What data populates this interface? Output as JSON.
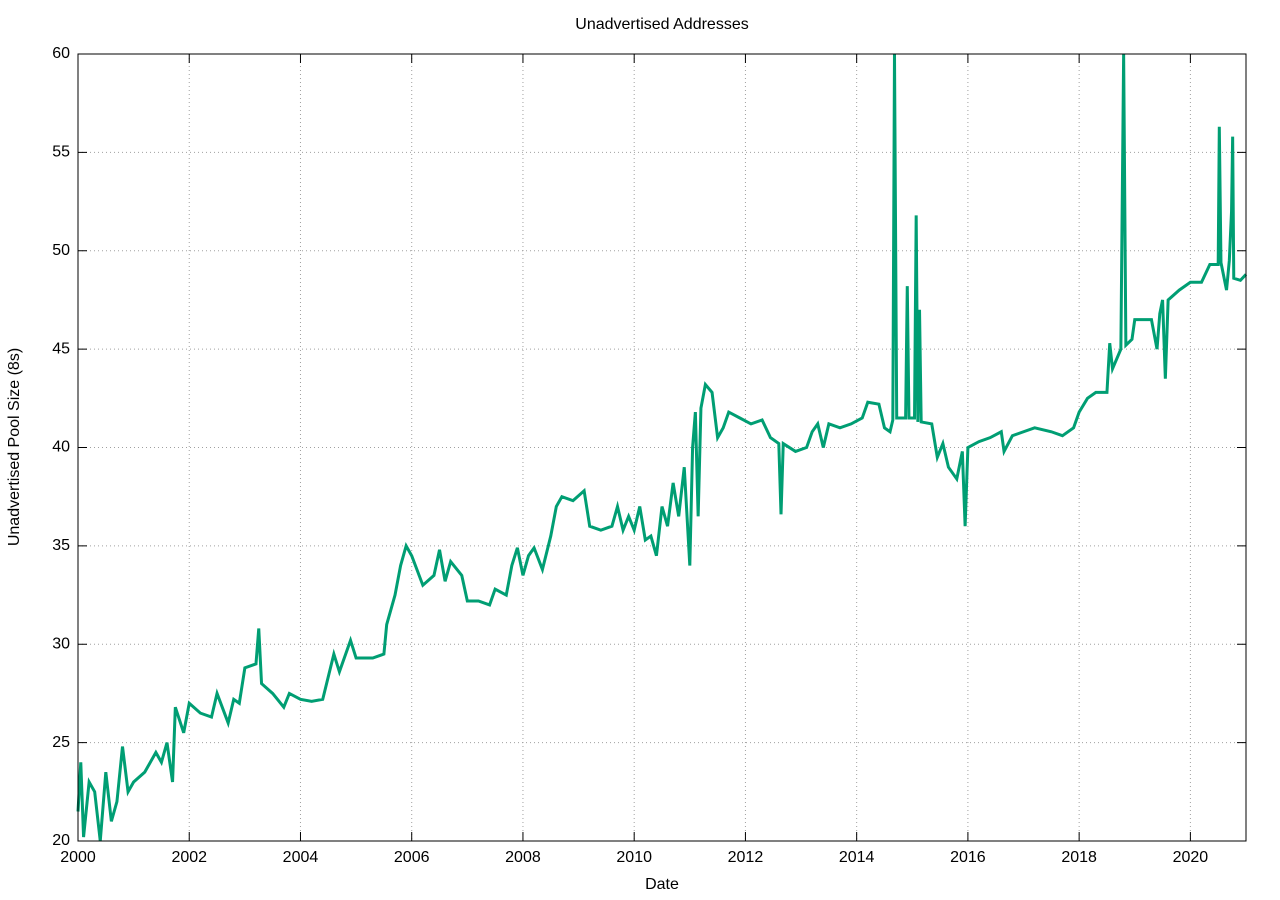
{
  "chart_data": {
    "type": "line",
    "title": "Unadvertised Addresses",
    "x_label": "Date",
    "y_label": "Unadvertised Pool Size (8s)",
    "x": [
      2000.0,
      2000.05,
      2000.1,
      2000.2,
      2000.3,
      2000.4,
      2000.5,
      2000.6,
      2000.7,
      2000.8,
      2000.9,
      2001.0,
      2001.2,
      2001.4,
      2001.5,
      2001.6,
      2001.7,
      2001.75,
      2001.9,
      2002.0,
      2002.2,
      2002.4,
      2002.5,
      2002.7,
      2002.8,
      2002.9,
      2003.0,
      2003.2,
      2003.25,
      2003.3,
      2003.5,
      2003.7,
      2003.8,
      2004.0,
      2004.2,
      2004.4,
      2004.6,
      2004.7,
      2004.9,
      2005.0,
      2005.3,
      2005.5,
      2005.55,
      2005.7,
      2005.8,
      2005.9,
      2006.0,
      2006.2,
      2006.4,
      2006.5,
      2006.6,
      2006.7,
      2006.9,
      2007.0,
      2007.2,
      2007.4,
      2007.5,
      2007.7,
      2007.8,
      2007.9,
      2008.0,
      2008.1,
      2008.2,
      2008.35,
      2008.5,
      2008.6,
      2008.7,
      2008.9,
      2009.1,
      2009.2,
      2009.4,
      2009.6,
      2009.7,
      2009.8,
      2009.9,
      2010.0,
      2010.1,
      2010.2,
      2010.3,
      2010.4,
      2010.5,
      2010.6,
      2010.7,
      2010.8,
      2010.9,
      2011.0,
      2011.05,
      2011.1,
      2011.15,
      2011.2,
      2011.28,
      2011.4,
      2011.5,
      2011.6,
      2011.7,
      2011.9,
      2012.1,
      2012.3,
      2012.45,
      2012.6,
      2012.64,
      2012.68,
      2012.9,
      2013.1,
      2013.2,
      2013.3,
      2013.4,
      2013.5,
      2013.7,
      2013.9,
      2014.1,
      2014.2,
      2014.4,
      2014.5,
      2014.6,
      2014.65,
      2014.68,
      2014.72,
      2014.88,
      2014.91,
      2014.94,
      2015.04,
      2015.07,
      2015.1,
      2015.13,
      2015.16,
      2015.35,
      2015.45,
      2015.55,
      2015.65,
      2015.8,
      2015.9,
      2015.95,
      2016.0,
      2016.2,
      2016.4,
      2016.6,
      2016.65,
      2016.8,
      2017.0,
      2017.2,
      2017.5,
      2017.7,
      2017.9,
      2018.0,
      2018.15,
      2018.3,
      2018.5,
      2018.55,
      2018.6,
      2018.75,
      2018.8,
      2018.84,
      2018.95,
      2019.0,
      2019.3,
      2019.4,
      2019.45,
      2019.5,
      2019.55,
      2019.6,
      2019.8,
      2020.0,
      2020.2,
      2020.35,
      2020.5,
      2020.52,
      2020.55,
      2020.65,
      2020.7,
      2020.74,
      2020.76,
      2020.78,
      2020.9,
      2021.0
    ],
    "values": [
      21.5,
      24.0,
      20.2,
      23.0,
      22.5,
      20.0,
      23.5,
      21.0,
      22.0,
      24.8,
      22.5,
      23.0,
      23.5,
      24.5,
      24.0,
      25.0,
      23.0,
      26.8,
      25.5,
      27.0,
      26.5,
      26.3,
      27.5,
      26.0,
      27.2,
      27.0,
      28.8,
      29.0,
      30.8,
      28.0,
      27.5,
      26.8,
      27.5,
      27.2,
      27.1,
      27.2,
      29.5,
      28.6,
      30.2,
      29.3,
      29.3,
      29.5,
      31.0,
      32.5,
      34.0,
      35.0,
      34.5,
      33.0,
      33.5,
      34.8,
      33.2,
      34.2,
      33.5,
      32.2,
      32.2,
      32.0,
      32.8,
      32.5,
      34.0,
      34.9,
      33.5,
      34.5,
      34.9,
      33.8,
      35.5,
      37.0,
      37.5,
      37.3,
      37.8,
      36.0,
      35.8,
      36.0,
      37.0,
      35.8,
      36.5,
      35.8,
      37.0,
      35.3,
      35.5,
      34.5,
      37.0,
      36.0,
      38.2,
      36.5,
      39.0,
      34.0,
      40.0,
      41.8,
      36.5,
      42.0,
      43.2,
      42.8,
      40.5,
      41.0,
      41.8,
      41.5,
      41.2,
      41.4,
      40.5,
      40.2,
      36.6,
      40.2,
      39.8,
      40.0,
      40.8,
      41.2,
      40.0,
      41.2,
      41.0,
      41.2,
      41.5,
      42.3,
      42.2,
      41.0,
      40.8,
      41.4,
      60.0,
      41.5,
      41.5,
      48.2,
      41.5,
      41.5,
      51.8,
      41.3,
      47.0,
      41.3,
      41.2,
      39.5,
      40.2,
      39.0,
      38.4,
      39.8,
      36.0,
      40.0,
      40.3,
      40.5,
      40.8,
      39.8,
      40.6,
      40.8,
      41.0,
      40.8,
      40.6,
      41.0,
      41.8,
      42.5,
      42.8,
      42.8,
      45.3,
      44.0,
      45.0,
      60.0,
      45.2,
      45.5,
      46.5,
      46.5,
      45.0,
      46.8,
      47.5,
      43.5,
      47.5,
      48.0,
      48.4,
      48.4,
      49.3,
      49.3,
      56.3,
      49.4,
      48.0,
      49.5,
      52.0,
      55.8,
      48.6,
      48.5,
      48.8
    ],
    "color": "#009e73",
    "xlim": [
      2000,
      2021
    ],
    "xticks": [
      2000,
      2002,
      2004,
      2006,
      2008,
      2010,
      2012,
      2014,
      2016,
      2018,
      2020
    ],
    "ylim": [
      20,
      60
    ],
    "yticks": [
      20,
      25,
      30,
      35,
      40,
      45,
      50,
      55,
      60
    ],
    "grid": true
  }
}
